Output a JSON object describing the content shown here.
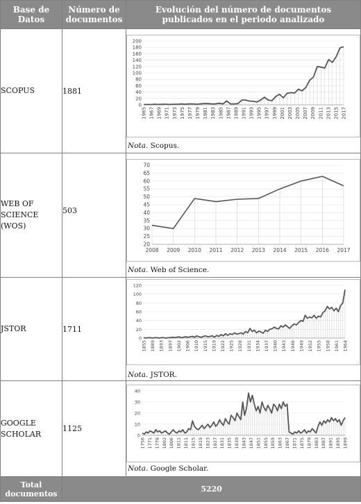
{
  "table": {
    "headers": [
      "Base de Datos",
      "Número de documentos",
      "Evolución del número de documentos publicados en el periodo analizado"
    ],
    "rows": [
      {
        "db_lines": [
          "SCOPUS"
        ],
        "count": "1881",
        "note_prefix": "Nota.",
        "note_text": " Scopus."
      },
      {
        "db_lines": [
          "WEB OF",
          "SCIENCE",
          "(WOS)"
        ],
        "count": "503",
        "note_prefix": "Nota.",
        "note_text": " Web of Science."
      },
      {
        "db_lines": [
          "JSTOR"
        ],
        "count": "1711",
        "note_prefix": "Nota.",
        "note_text": " JSTOR."
      },
      {
        "db_lines": [
          "GOOGLE",
          "SCHOLAR"
        ],
        "count": "1125",
        "note_prefix": "Nota.",
        "note_text": " Google Scholar."
      }
    ],
    "footer": {
      "label_lines": [
        "Total",
        "documentos"
      ],
      "value": "5220"
    }
  },
  "chart_data": [
    {
      "type": "line",
      "source": "Scopus",
      "ylim": [
        0,
        200
      ],
      "yticks": [
        0,
        20,
        40,
        60,
        80,
        100,
        120,
        140,
        160,
        180,
        200
      ],
      "xlabels": [
        "1965",
        "1967",
        "1969",
        "1971",
        "1973",
        "1975",
        "1977",
        "1979",
        "1981",
        "1983",
        "1985",
        "1987",
        "1989",
        "1991",
        "1993",
        "1995",
        "1997",
        "1999",
        "2001",
        "2003",
        "2005",
        "2007",
        "2009",
        "2011",
        "2013",
        "2015",
        "2017"
      ],
      "x": [
        1965,
        1966,
        1967,
        1968,
        1969,
        1970,
        1971,
        1972,
        1973,
        1974,
        1975,
        1976,
        1977,
        1978,
        1979,
        1980,
        1981,
        1982,
        1983,
        1984,
        1985,
        1986,
        1987,
        1988,
        1989,
        1990,
        1991,
        1992,
        1993,
        1994,
        1995,
        1996,
        1997,
        1998,
        1999,
        2000,
        2001,
        2002,
        2003,
        2004,
        2005,
        2006,
        2007,
        2008,
        2009,
        2010,
        2011,
        2012,
        2013,
        2014,
        2015,
        2016,
        2017,
        2018
      ],
      "values": [
        1,
        1,
        1,
        2,
        1,
        2,
        2,
        1,
        2,
        2,
        3,
        2,
        3,
        3,
        2,
        3,
        4,
        4,
        3,
        3,
        5,
        3,
        12,
        3,
        3,
        4,
        15,
        15,
        12,
        11,
        9,
        15,
        24,
        15,
        13,
        26,
        33,
        22,
        36,
        38,
        37,
        49,
        44,
        55,
        77,
        87,
        120,
        118,
        115,
        142,
        133,
        150,
        178,
        182
      ]
    },
    {
      "type": "line",
      "source": "Web of Science",
      "ylim": [
        20,
        70
      ],
      "yticks": [
        20,
        25,
        30,
        35,
        40,
        45,
        50,
        55,
        60,
        65,
        70
      ],
      "xlabels": [
        "2008",
        "2009",
        "2010",
        "2011",
        "2012",
        "2013",
        "2014",
        "2015",
        "2016",
        "2017"
      ],
      "x": [
        2008,
        2009,
        2010,
        2011,
        2012,
        2013,
        2014,
        2015,
        2016,
        2017
      ],
      "values": [
        32,
        30,
        49,
        47,
        48.5,
        49,
        55,
        60,
        63,
        57
      ]
    },
    {
      "type": "line",
      "source": "JSTOR",
      "ylim": [
        0,
        120
      ],
      "yticks": [
        0,
        20,
        40,
        60,
        80,
        100,
        120
      ],
      "xlabels": [
        "1855",
        "1889",
        "1893",
        "1897",
        "1902",
        "1906",
        "1910",
        "1915",
        "1919",
        "1922",
        "1925",
        "1928",
        "1931",
        "1934",
        "1937",
        "1940",
        "1943",
        "1946",
        "1949",
        "1952",
        "1955",
        "1958",
        "1961",
        "1964"
      ],
      "values": [
        1,
        0,
        1,
        1,
        0,
        1,
        1,
        0,
        1,
        1,
        0,
        1,
        1,
        2,
        1,
        2,
        3,
        1,
        2,
        3,
        2,
        3,
        4,
        2,
        5,
        3,
        2,
        4,
        5,
        3,
        4,
        5,
        2,
        6,
        4,
        8,
        5,
        10,
        6,
        10,
        8,
        12,
        9,
        10,
        12,
        9,
        15,
        12,
        22,
        15,
        18,
        12,
        16,
        14,
        11,
        18,
        15,
        20,
        21,
        25,
        22,
        21,
        28,
        25,
        30,
        26,
        22,
        28,
        32,
        30,
        35,
        40,
        38,
        52,
        45,
        48,
        46,
        52,
        45,
        50,
        48,
        58,
        62,
        72,
        66,
        70,
        62,
        68,
        60,
        74,
        80,
        110
      ]
    },
    {
      "type": "line",
      "source": "Google Scholar",
      "ylim": [
        0,
        40
      ],
      "yticks": [
        0,
        10,
        20,
        30,
        40
      ],
      "xlabels": [
        "1756",
        "1771",
        "1778",
        "1802",
        "1806",
        "1811",
        "1811",
        "1815",
        "1819",
        "1823",
        "1827",
        "1831",
        "1835",
        "1839",
        "1843",
        "1847",
        "1851",
        "1855",
        "1859",
        "1863",
        "1867",
        "1871",
        "1875",
        "1879",
        "1883",
        "1887",
        "1891",
        "1895",
        "1899"
      ],
      "values": [
        2,
        1,
        3,
        2,
        4,
        3,
        2,
        5,
        3,
        4,
        2,
        3,
        4,
        2,
        1,
        3,
        5,
        3,
        2,
        4,
        3,
        5,
        2,
        3,
        6,
        5,
        13,
        8,
        6,
        5,
        7,
        9,
        6,
        8,
        10,
        7,
        9,
        12,
        8,
        10,
        14,
        11,
        9,
        15,
        12,
        10,
        18,
        16,
        13,
        20,
        17,
        14,
        30,
        18,
        25,
        38,
        30,
        36,
        28,
        22,
        26,
        20,
        30,
        25,
        22,
        27,
        24,
        20,
        28,
        26,
        22,
        28,
        24,
        30,
        26,
        28,
        3,
        2,
        1,
        3,
        2,
        4,
        2,
        3,
        5,
        2,
        4,
        3,
        6,
        4,
        2,
        8,
        12,
        9,
        13,
        11,
        14,
        12,
        16,
        13,
        15,
        12,
        14,
        9,
        13,
        16
      ]
    }
  ]
}
